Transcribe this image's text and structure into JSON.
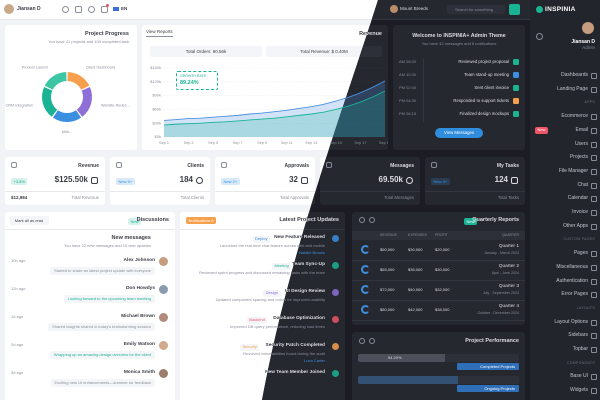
{
  "topbar": {
    "user": "Jiansan D",
    "language": "EN",
    "user_right": "Mount Breeds",
    "search": "Search for something"
  },
  "sidebar": {
    "brand": "INSPINIA",
    "user": "Jiansan D",
    "role": "Admin",
    "badge": "New",
    "groups": [
      {
        "items": [
          "Dashboards",
          "Landing Page"
        ]
      },
      {
        "heading": "APPS",
        "items": [
          "Ecommerce",
          "Email",
          "Users",
          "Projects",
          "File Manager",
          "Chat",
          "Calendar",
          "Invoice",
          "Other Apps"
        ]
      },
      {
        "heading": "CUSTOM PAGES",
        "items": [
          "Pages",
          "Miscellaneous",
          "Authentication",
          "Error Pages"
        ]
      },
      {
        "heading": "LAYOUTS",
        "items": [
          "Layout Options",
          "Sidebars",
          "Topbar"
        ]
      },
      {
        "heading": "COMPONENTS",
        "items": [
          "Base UI",
          "Widgets"
        ]
      }
    ]
  },
  "progress": {
    "title": "Project Progress",
    "subtitle": "You have 21 projects and 109 completed task",
    "donut": {
      "labels": [
        "Client Dashboard",
        "Website Redes...",
        "Mob...",
        "CRM Integration",
        "Product Launch"
      ],
      "values": [
        18,
        22,
        20,
        22,
        18
      ],
      "colors": [
        "#f6a04d",
        "#8e6fd8",
        "#3b8fe0",
        "#1ab394",
        "#3cc6a3"
      ]
    }
  },
  "revenue": {
    "button": "View Reports",
    "title": "Revenue",
    "total_orders": "Total Orders: 90.56k",
    "total_revenue": "Total Revenue: $ 0.40M",
    "growth_label": "GROWTH RATE",
    "growth_value": "89.24%",
    "chart_data": {
      "type": "area",
      "categories": [
        "Sep 1",
        null,
        "Sep 3",
        null,
        "Sep 5",
        null,
        "Sep 7",
        null,
        "Sep 9",
        null,
        "Sep 11",
        null,
        "Sep 13",
        null,
        "Sep 15",
        null,
        "Sep 17",
        null,
        "Sep 19"
      ],
      "series": [
        {
          "name": "Revenue",
          "color": "#4a90e2",
          "values": [
            36,
            38,
            40,
            41,
            43,
            45,
            47,
            50,
            52,
            55,
            58,
            62,
            66,
            71,
            78,
            86,
            96,
            108,
            122
          ]
        },
        {
          "name": "Orders",
          "color": "#1ab394",
          "values": [
            26,
            28,
            29,
            30,
            32,
            33,
            35,
            37,
            39,
            41,
            44,
            47,
            50,
            54,
            60,
            67,
            76,
            87,
            100
          ]
        }
      ],
      "ylim": [
        0,
        150
      ],
      "yticks": [
        {
          "value": 0,
          "label": "$0k"
        },
        {
          "value": 30,
          "label": "$30k"
        },
        {
          "value": 60,
          "label": "$60k"
        },
        {
          "value": 90,
          "label": "$90k"
        },
        {
          "value": 120,
          "label": "$120k"
        },
        {
          "value": 150,
          "label": "$150k"
        }
      ],
      "grid": true
    }
  },
  "welcome": {
    "title": "Welcome to INSPINIA+ Admin Theme",
    "subtitle": "You have 42 messages and 6 notifications",
    "timeline": [
      {
        "time": "AM 08:00",
        "text": "Reviewed project proposal",
        "color": "#1ab394"
      },
      {
        "time": "AM 10:30",
        "text": "Team stand-up meeting",
        "color": "#3b8fe0"
      },
      {
        "time": "PM 02:00",
        "text": "Sent client invoice",
        "color": "#1ab394"
      },
      {
        "time": "PM 04:30",
        "text": "Responded to support tickets",
        "color": "#f6a04d"
      },
      {
        "time": "PM 06:15",
        "text": "Finalized design mockups",
        "color": "#1ab394"
      }
    ],
    "button": "View Messages"
  },
  "stats": [
    {
      "title": "Revenue",
      "badge": "+3.8%",
      "value": "$125.50k",
      "bottom_left": "$12,984",
      "bottom_right": "Total Revenue"
    },
    {
      "title": "Clients",
      "badge": "New 5+",
      "value": "184",
      "bottom_right": "Total Clients"
    },
    {
      "title": "Approvals",
      "badge": "New 2+",
      "value": "32",
      "bottom_right": "Total Approvals"
    },
    {
      "title": "Messages",
      "value": "69.50k",
      "bottom_right": "Total Messages"
    },
    {
      "title": "My Tasks",
      "badge": "New 4+",
      "value": "124",
      "bottom_right": "Total Tasks"
    }
  ],
  "discussions": {
    "button": "Mark all as read",
    "badge": "New",
    "title": "Discussions",
    "heading": "New messages",
    "subtitle": "You have 22 new messages and 10 new updates",
    "items": [
      {
        "time": "10h ago",
        "name": "Alex Johnson",
        "text": "Started to share an latest project update with everyone"
      },
      {
        "time": "12h ago",
        "name": "Don Howdys",
        "text": "Looking forward to the upcoming team meeting"
      },
      {
        "time": "1d ago",
        "name": "Michael Brown",
        "text": "Shared insights shared in today's brainstorming session"
      },
      {
        "time": "2d ago",
        "name": "Emily Watson",
        "text": "Wrapping up an amazing design overview for the client"
      },
      {
        "time": "3d ago",
        "name": "Monica Smith",
        "text": "Exciting new UI enhancements—summer for feedback"
      }
    ]
  },
  "updates": {
    "badge": "Notifications 6",
    "title": "Latest Project Updates",
    "items": [
      {
        "tag": "Deploy",
        "title": "New Feature Released",
        "text": "Launched the real-time chat feature across web and mobile",
        "author": "Natalie Brooks"
      },
      {
        "tag": "Meeting",
        "title": "Team Sync-Up",
        "text": "Reviewed sprint progress and discussed remaining tasks with the team"
      },
      {
        "tag": "Design",
        "title": "UI Design Review",
        "text": "Updated component spacing and colors for improved usability"
      },
      {
        "tag": "Backend",
        "title": "Database Optimization",
        "text": "Improved DB query performance, reducing load times"
      },
      {
        "tag": "Security",
        "title": "Security Patch Completed",
        "text": "Resolved vulnerabilities found during the audit",
        "author": "Luca Carter"
      },
      {
        "title": "New Team Member Joined"
      }
    ]
  },
  "quarterly": {
    "badge": "New",
    "title": "Quarterly Reports",
    "columns": [
      "REVENUE",
      "EXPENSES",
      "PROFIT",
      "QUARTER"
    ],
    "rows": [
      {
        "cells": [
          "$50,000",
          "$30,000",
          "$20,000"
        ],
        "quarter": "Quarter 1",
        "dates": "January - March 2024"
      },
      {
        "cells": [
          "$65,000",
          "$35,000",
          "$30,000"
        ],
        "quarter": "Quarter 2",
        "dates": "April - June 2024"
      },
      {
        "cells": [
          "$72,000",
          "$40,000",
          "$32,000"
        ],
        "quarter": "Quarter 3",
        "dates": "July - September 2024"
      },
      {
        "cells": [
          "$80,000",
          "$42,000",
          "$38,000"
        ],
        "quarter": "Quarter 4",
        "dates": "October - December 2024"
      }
    ]
  },
  "performance": {
    "title": "Project Performance",
    "bars": [
      {
        "label": "Completed Projects",
        "value": 54.2,
        "value_label": "54.20%"
      },
      {
        "label": "Ongoing Projects",
        "value": 62
      }
    ]
  }
}
